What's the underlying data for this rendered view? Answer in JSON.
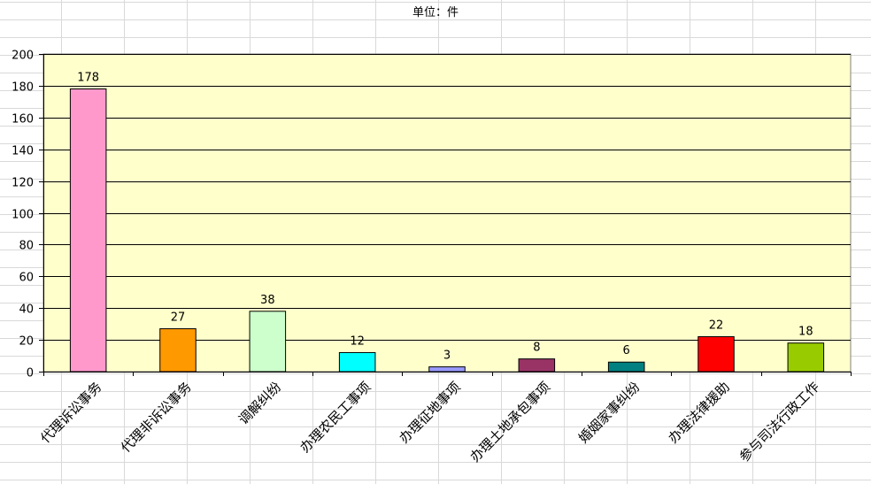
{
  "unit_label": "单位：件",
  "chart_data": {
    "type": "bar",
    "title": "单位：件",
    "categories": [
      "代理诉讼事务",
      "代理非诉讼事务",
      "调解纠纷",
      "办理农民工事项",
      "办理征地事项",
      "办理土地承包事项",
      "婚姻家事纠纷",
      "办理法律援助",
      "参与司法行政工作"
    ],
    "values": [
      178,
      27,
      38,
      12,
      3,
      8,
      6,
      22,
      18
    ],
    "bar_colors": [
      "#ff99cc",
      "#ff9900",
      "#ccffcc",
      "#00ffff",
      "#9999ff",
      "#993366",
      "#008080",
      "#ff0000",
      "#99cc00"
    ],
    "plot_background": "#ffffcc",
    "ylim": [
      0,
      200
    ],
    "yticks": [
      0,
      20,
      40,
      60,
      80,
      100,
      120,
      140,
      160,
      180,
      200
    ],
    "grid": true,
    "legend": "none",
    "xlabel": "",
    "ylabel": ""
  }
}
